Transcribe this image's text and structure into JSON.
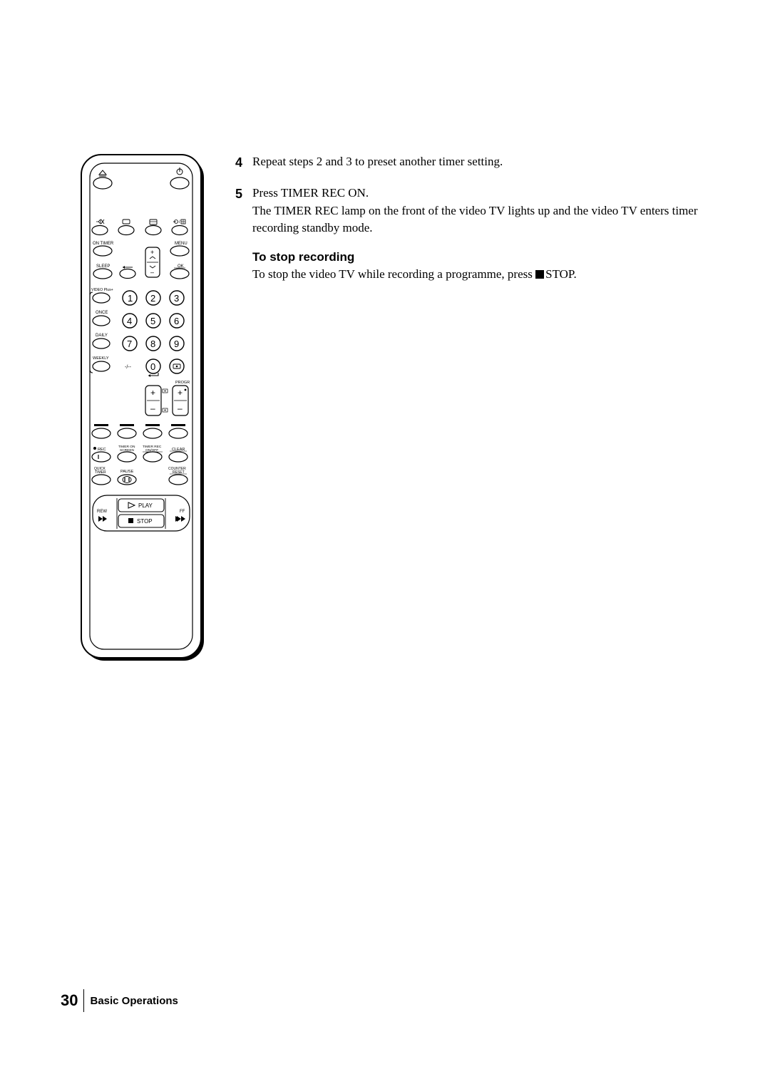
{
  "steps": [
    {
      "num": "4",
      "text": "Repeat steps 2 and 3 to preset another timer setting."
    },
    {
      "num": "5",
      "text": "Press TIMER REC ON.\nThe TIMER REC lamp on the front of the video TV lights up and the video TV enters timer recording standby mode."
    }
  ],
  "subheading": "To stop recording",
  "subbody_prefix": "To stop the video TV while recording a programme, press ",
  "subbody_suffix": "STOP.",
  "footer": {
    "page": "30",
    "section": "Basic Operations"
  },
  "remote": {
    "labels": {
      "on_timer": "ON TIMER",
      "menu": "MENU",
      "sleep": "SLEEP",
      "ok": "OK",
      "videoplus": "VIDEO Plus+",
      "once": "ONCE",
      "daily": "DAILY",
      "weekly": "WEEKLY",
      "dash": "-/--",
      "progr": "PROGR",
      "rec": "REC",
      "timer_on_screen": "TIMER ON\nSCREEN",
      "timer_rec_onoff": "TIMER REC\nON/OFF",
      "clear": "CLEAR",
      "quick_timer": "QUICK\nTIMER",
      "pause": "PAUSE",
      "counter_reset": "COUNTER\nRESET",
      "play": "PLAY",
      "stop": "STOP",
      "rew": "REW",
      "ff": "FF"
    },
    "numbers": [
      "1",
      "2",
      "3",
      "4",
      "5",
      "6",
      "7",
      "8",
      "9",
      "0"
    ],
    "colors": {
      "outline": "#000000",
      "fill": "#ffffff",
      "shadow": "#000000"
    }
  }
}
